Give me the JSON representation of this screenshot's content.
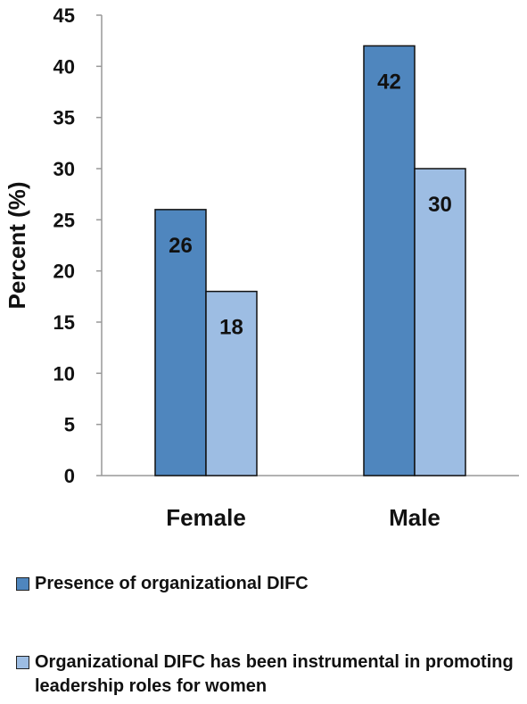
{
  "chart_data": {
    "type": "bar",
    "categories": [
      "Female",
      "Male"
    ],
    "series": [
      {
        "name": "Presence of organizational DIFC",
        "values": [
          26,
          42
        ],
        "color": "#4f86be"
      },
      {
        "name": "Organizational DIFC has been instrumental in promoting leadership roles for women",
        "values": [
          18,
          30
        ],
        "color": "#9dbde3"
      }
    ],
    "title": "",
    "xlabel": "",
    "ylabel": "Percent (%)",
    "ylim": [
      0,
      45
    ],
    "yticks": [
      0,
      5,
      10,
      15,
      20,
      25,
      30,
      35,
      40,
      45
    ],
    "grid": false,
    "legend_position": "bottom"
  }
}
